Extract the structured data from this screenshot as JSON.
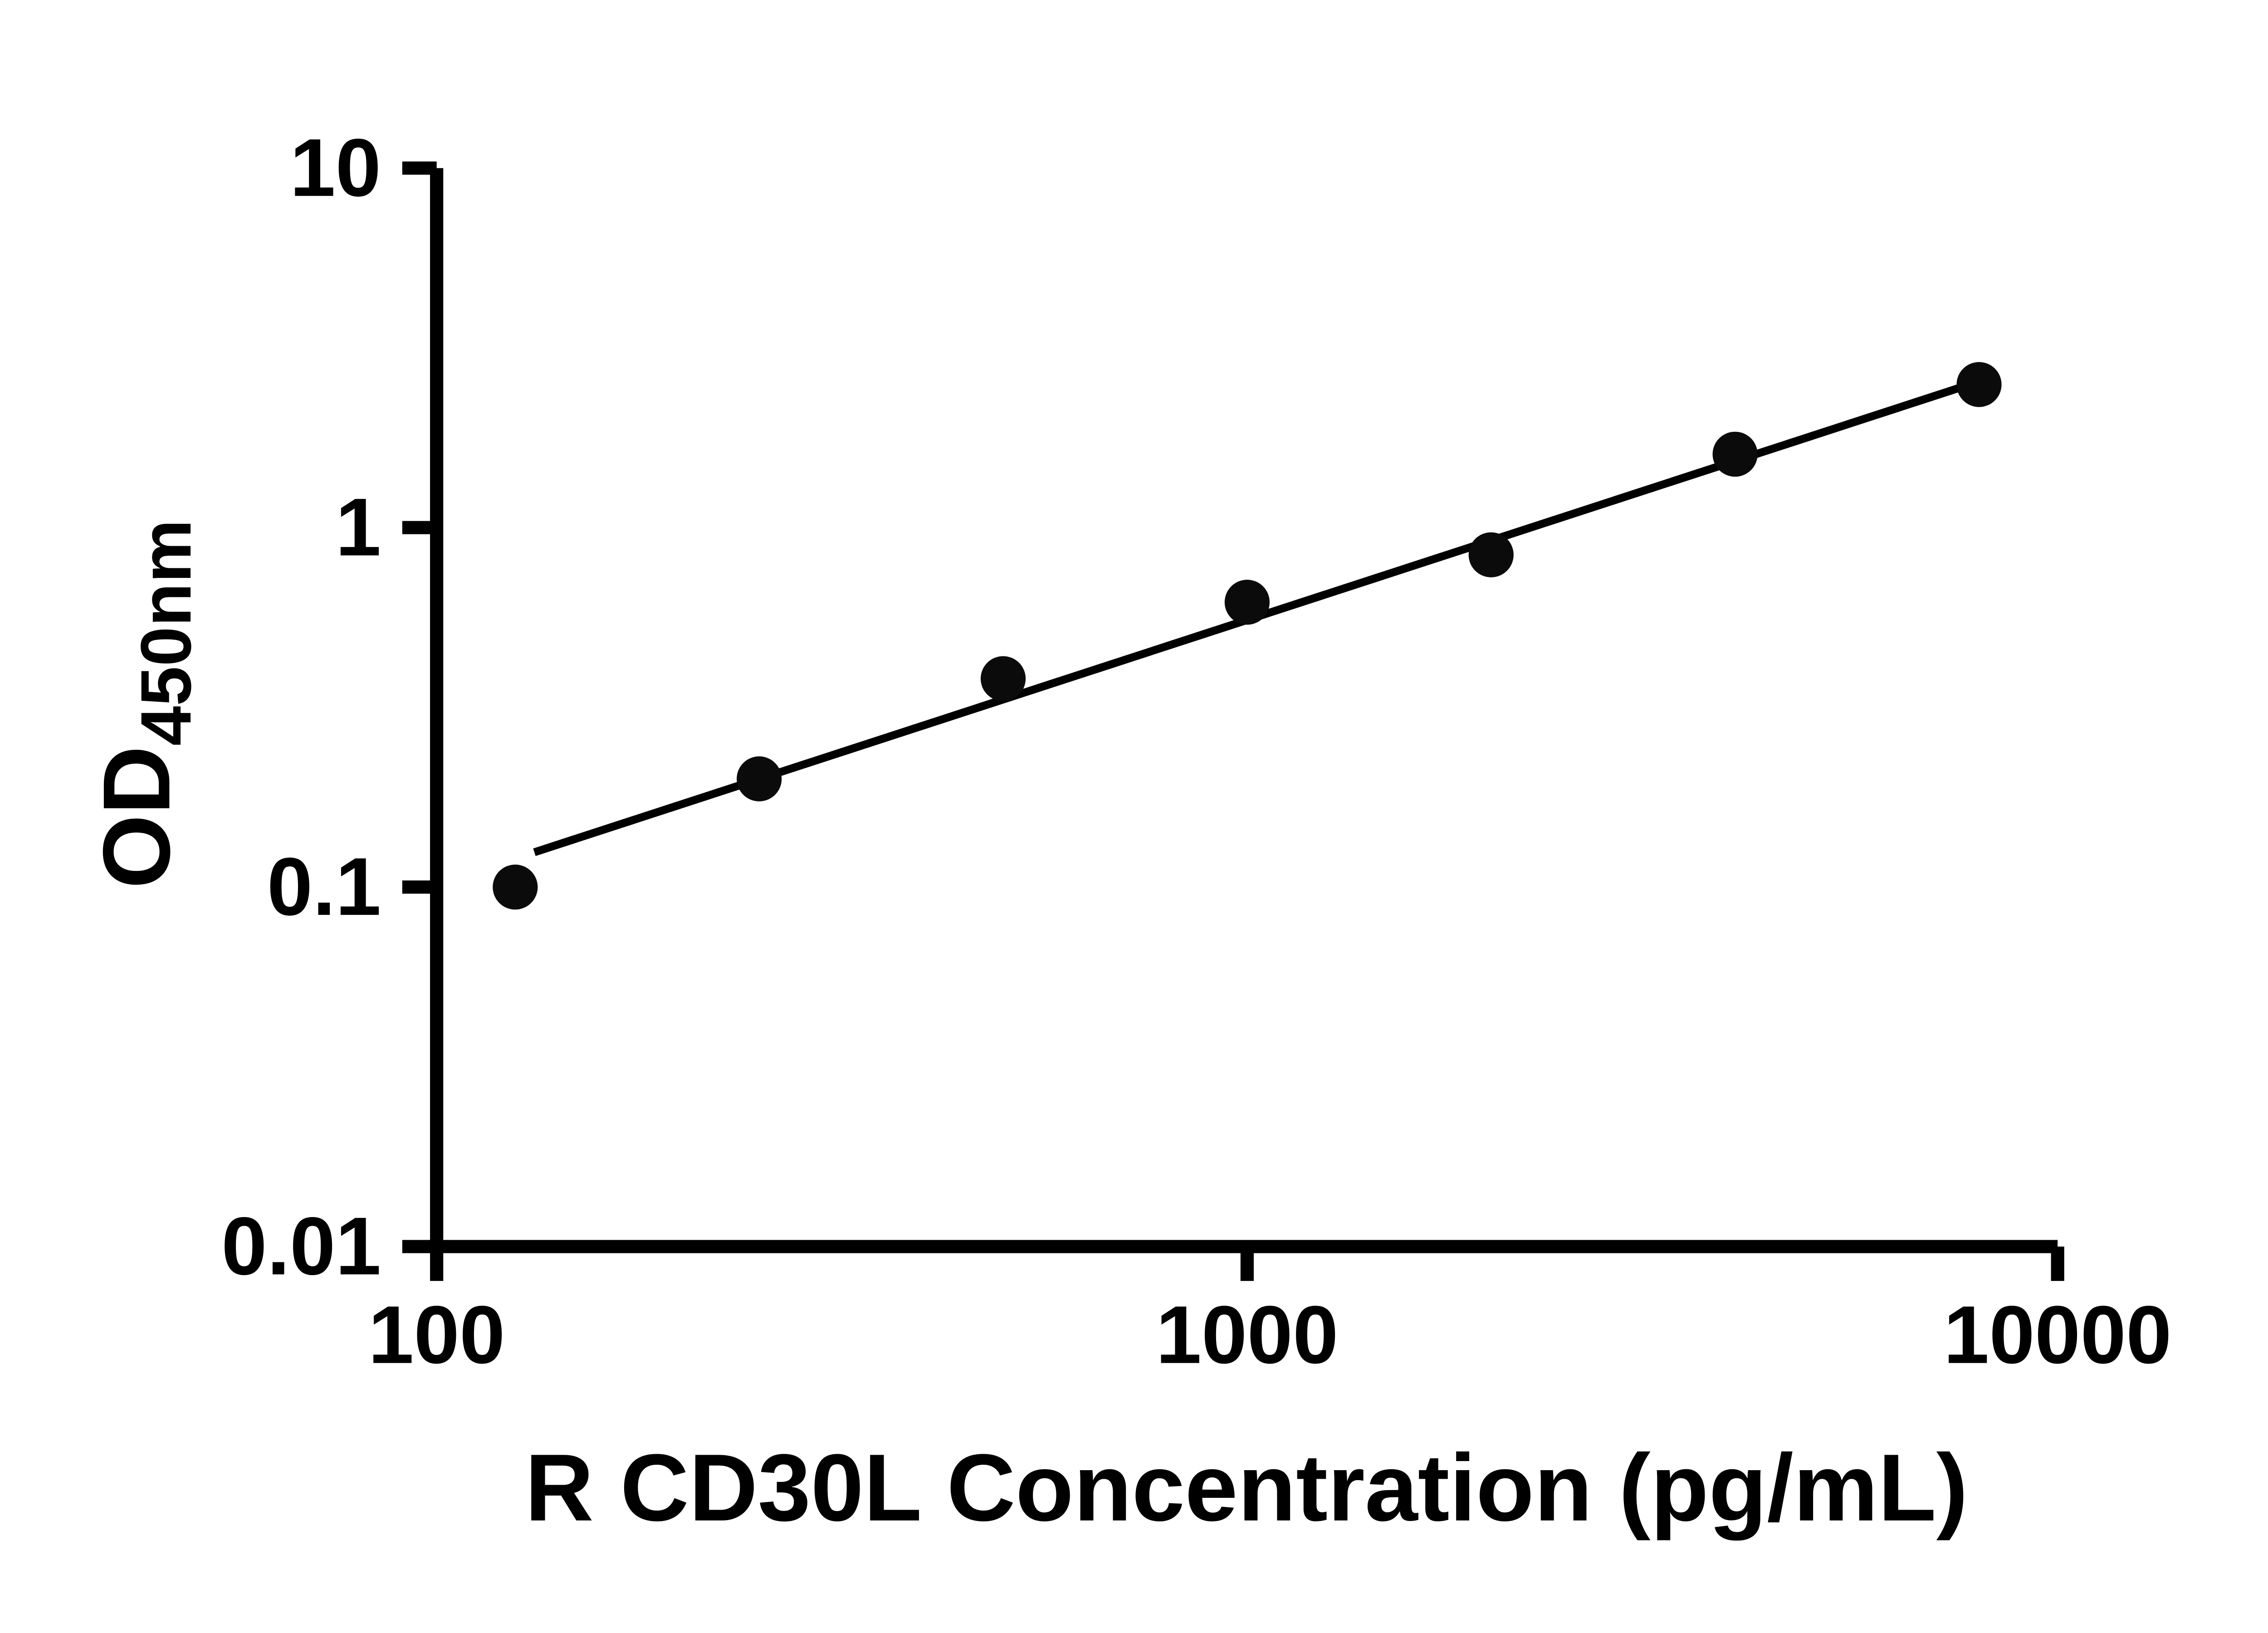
{
  "chart_data": {
    "type": "scatter",
    "xlabel": "R CD30L Concentration (pg/mL)",
    "ylabel_main": "OD",
    "ylabel_sub": "450nm",
    "x_scale": "log",
    "y_scale": "log",
    "xlim": [
      100,
      10000
    ],
    "ylim": [
      0.01,
      10
    ],
    "x_ticks": [
      100,
      1000,
      10000
    ],
    "x_tick_labels": [
      "100",
      "1000",
      "10000"
    ],
    "y_ticks": [
      0.01,
      0.1,
      1,
      10
    ],
    "y_tick_labels": [
      "0.01",
      "0.1",
      "1",
      "10"
    ],
    "grid": "off",
    "legend": "none",
    "points": [
      {
        "x": 125,
        "y": 0.1
      },
      {
        "x": 250,
        "y": 0.2
      },
      {
        "x": 500,
        "y": 0.38
      },
      {
        "x": 1000,
        "y": 0.62
      },
      {
        "x": 2000,
        "y": 0.84
      },
      {
        "x": 4000,
        "y": 1.6
      },
      {
        "x": 8000,
        "y": 2.5
      }
    ],
    "trend_line": {
      "x1": 132,
      "y1": 0.125,
      "x2": 8000,
      "y2": 2.55
    },
    "axis_color": "#000000",
    "marker_color": "#0b0b0b",
    "line_color": "#000000",
    "background": "#ffffff"
  }
}
